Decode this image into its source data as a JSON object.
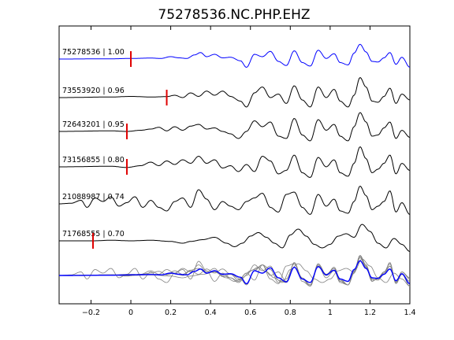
{
  "chart_data": {
    "type": "line",
    "title": "75278536.NC.PHP.EHZ",
    "xlabel": "",
    "ylabel": "",
    "xlim": [
      -0.36,
      1.4
    ],
    "x_ticks": [
      -0.2,
      0,
      0.2,
      0.4,
      0.6,
      0.8,
      1,
      1.2,
      1.4
    ],
    "x_tick_labels": [
      "−0.2",
      "0",
      "0.2",
      "0.4",
      "0.6",
      "0.8",
      "1",
      "1.2",
      "1.4"
    ],
    "grid": false,
    "pick_color": "#e00000",
    "stack_color": "#808080",
    "series": [
      {
        "name": "75278536 | 1.00",
        "color": "#0000ff",
        "pick": 0.0,
        "amp": 15,
        "keys": [
          [
            -0.36,
            0
          ],
          [
            -0.1,
            0.02
          ],
          [
            0.0,
            0.05
          ],
          [
            0.1,
            0.08
          ],
          [
            0.15,
            0.05
          ],
          [
            0.2,
            0.2
          ],
          [
            0.24,
            0.1
          ],
          [
            0.28,
            0.05
          ],
          [
            0.32,
            0.35
          ],
          [
            0.35,
            0.55
          ],
          [
            0.38,
            0.2
          ],
          [
            0.42,
            0.4
          ],
          [
            0.46,
            0.1
          ],
          [
            0.5,
            0.15
          ],
          [
            0.55,
            -0.15
          ],
          [
            0.58,
            -0.7
          ],
          [
            0.62,
            0.4
          ],
          [
            0.66,
            0.2
          ],
          [
            0.7,
            0.65
          ],
          [
            0.74,
            -0.2
          ],
          [
            0.78,
            -0.55
          ],
          [
            0.82,
            0.7
          ],
          [
            0.86,
            -0.3
          ],
          [
            0.9,
            -0.6
          ],
          [
            0.94,
            0.75
          ],
          [
            0.98,
            0.05
          ],
          [
            1.02,
            0.45
          ],
          [
            1.05,
            -0.3
          ],
          [
            1.09,
            -0.5
          ],
          [
            1.12,
            0.5
          ],
          [
            1.15,
            1.25
          ],
          [
            1.18,
            0.6
          ],
          [
            1.21,
            -0.2
          ],
          [
            1.24,
            -0.25
          ],
          [
            1.27,
            0.1
          ],
          [
            1.3,
            0.55
          ],
          [
            1.33,
            -0.45
          ],
          [
            1.36,
            0.15
          ],
          [
            1.4,
            -0.7
          ]
        ]
      },
      {
        "name": "73553920 | 0.96",
        "color": "#000000",
        "pick": 0.18,
        "amp": 15,
        "keys": [
          [
            -0.36,
            0
          ],
          [
            -0.1,
            0.05
          ],
          [
            0.0,
            0.1
          ],
          [
            0.1,
            0.05
          ],
          [
            0.18,
            0.08
          ],
          [
            0.22,
            0.2
          ],
          [
            0.26,
            0.0
          ],
          [
            0.3,
            0.4
          ],
          [
            0.34,
            0.1
          ],
          [
            0.38,
            0.55
          ],
          [
            0.42,
            0.2
          ],
          [
            0.46,
            0.55
          ],
          [
            0.5,
            0.1
          ],
          [
            0.55,
            -0.3
          ],
          [
            0.58,
            -0.8
          ],
          [
            0.62,
            0.4
          ],
          [
            0.66,
            0.9
          ],
          [
            0.7,
            0.0
          ],
          [
            0.74,
            0.3
          ],
          [
            0.78,
            -0.5
          ],
          [
            0.82,
            1.0
          ],
          [
            0.86,
            -0.2
          ],
          [
            0.9,
            -0.8
          ],
          [
            0.94,
            0.9
          ],
          [
            0.98,
            0.0
          ],
          [
            1.02,
            0.7
          ],
          [
            1.05,
            -0.3
          ],
          [
            1.09,
            -0.8
          ],
          [
            1.12,
            0.2
          ],
          [
            1.15,
            1.7
          ],
          [
            1.18,
            0.9
          ],
          [
            1.21,
            -0.3
          ],
          [
            1.24,
            -0.4
          ],
          [
            1.27,
            0.1
          ],
          [
            1.3,
            0.8
          ],
          [
            1.33,
            -0.5
          ],
          [
            1.36,
            0.3
          ],
          [
            1.4,
            -0.2
          ]
        ]
      },
      {
        "name": "72643201 | 0.95",
        "color": "#000000",
        "pick": -0.02,
        "amp": 15,
        "keys": [
          [
            -0.36,
            0
          ],
          [
            -0.1,
            0.05
          ],
          [
            -0.02,
            0.0
          ],
          [
            0.05,
            0.1
          ],
          [
            0.1,
            0.2
          ],
          [
            0.14,
            0.35
          ],
          [
            0.18,
            0.05
          ],
          [
            0.22,
            0.4
          ],
          [
            0.26,
            0.1
          ],
          [
            0.3,
            0.45
          ],
          [
            0.34,
            0.6
          ],
          [
            0.38,
            0.2
          ],
          [
            0.42,
            0.3
          ],
          [
            0.46,
            0.0
          ],
          [
            0.5,
            -0.2
          ],
          [
            0.54,
            -0.6
          ],
          [
            0.58,
            0.0
          ],
          [
            0.62,
            0.9
          ],
          [
            0.66,
            0.4
          ],
          [
            0.7,
            0.8
          ],
          [
            0.74,
            -0.4
          ],
          [
            0.78,
            -0.6
          ],
          [
            0.82,
            1.1
          ],
          [
            0.86,
            -0.3
          ],
          [
            0.9,
            -0.8
          ],
          [
            0.94,
            1.0
          ],
          [
            0.98,
            0.1
          ],
          [
            1.02,
            0.6
          ],
          [
            1.05,
            -0.4
          ],
          [
            1.09,
            -0.8
          ],
          [
            1.12,
            0.4
          ],
          [
            1.15,
            1.6
          ],
          [
            1.18,
            0.8
          ],
          [
            1.21,
            -0.4
          ],
          [
            1.24,
            -0.3
          ],
          [
            1.27,
            0.3
          ],
          [
            1.3,
            0.8
          ],
          [
            1.33,
            -0.6
          ],
          [
            1.36,
            0.1
          ],
          [
            1.4,
            -0.5
          ]
        ]
      },
      {
        "name": "73156855 | 0.80",
        "color": "#000000",
        "pick": -0.02,
        "amp": 15,
        "keys": [
          [
            -0.36,
            0
          ],
          [
            -0.1,
            0.05
          ],
          [
            -0.02,
            -0.05
          ],
          [
            0.05,
            0.1
          ],
          [
            0.1,
            0.4
          ],
          [
            0.14,
            0.1
          ],
          [
            0.18,
            0.5
          ],
          [
            0.22,
            0.2
          ],
          [
            0.26,
            0.6
          ],
          [
            0.3,
            0.3
          ],
          [
            0.34,
            0.9
          ],
          [
            0.38,
            0.3
          ],
          [
            0.42,
            0.6
          ],
          [
            0.46,
            -0.1
          ],
          [
            0.5,
            0.1
          ],
          [
            0.54,
            -0.4
          ],
          [
            0.58,
            0.2
          ],
          [
            0.62,
            -0.4
          ],
          [
            0.66,
            0.9
          ],
          [
            0.7,
            0.5
          ],
          [
            0.74,
            -0.6
          ],
          [
            0.78,
            -0.3
          ],
          [
            0.82,
            1.0
          ],
          [
            0.86,
            -0.5
          ],
          [
            0.9,
            -0.9
          ],
          [
            0.94,
            0.8
          ],
          [
            0.98,
            0.0
          ],
          [
            1.02,
            0.6
          ],
          [
            1.05,
            -0.5
          ],
          [
            1.09,
            -0.8
          ],
          [
            1.12,
            0.3
          ],
          [
            1.15,
            1.7
          ],
          [
            1.18,
            0.7
          ],
          [
            1.21,
            -0.5
          ],
          [
            1.24,
            -0.2
          ],
          [
            1.27,
            0.3
          ],
          [
            1.3,
            1.0
          ],
          [
            1.33,
            -0.6
          ],
          [
            1.36,
            0.3
          ],
          [
            1.4,
            -0.3
          ]
        ]
      },
      {
        "name": "21088987 | 0.74",
        "color": "#000000",
        "pick": null,
        "amp": 15,
        "keys": [
          [
            -0.36,
            0
          ],
          [
            -0.3,
            0.05
          ],
          [
            -0.25,
            0.3
          ],
          [
            -0.22,
            -0.3
          ],
          [
            -0.18,
            0.5
          ],
          [
            -0.14,
            0.2
          ],
          [
            -0.1,
            0.6
          ],
          [
            -0.06,
            -0.2
          ],
          [
            -0.02,
            0.1
          ],
          [
            0.02,
            0.6
          ],
          [
            0.06,
            -0.3
          ],
          [
            0.1,
            0.3
          ],
          [
            0.14,
            -0.3
          ],
          [
            0.18,
            -0.6
          ],
          [
            0.22,
            0.2
          ],
          [
            0.26,
            0.5
          ],
          [
            0.3,
            -0.3
          ],
          [
            0.34,
            1.2
          ],
          [
            0.38,
            0.4
          ],
          [
            0.42,
            -0.5
          ],
          [
            0.46,
            0.2
          ],
          [
            0.5,
            -0.2
          ],
          [
            0.54,
            -0.5
          ],
          [
            0.58,
            0.2
          ],
          [
            0.62,
            0.5
          ],
          [
            0.66,
            0.9
          ],
          [
            0.7,
            -0.3
          ],
          [
            0.74,
            -0.7
          ],
          [
            0.78,
            0.8
          ],
          [
            0.82,
            1.0
          ],
          [
            0.86,
            -0.3
          ],
          [
            0.9,
            -0.9
          ],
          [
            0.94,
            0.8
          ],
          [
            0.98,
            -0.2
          ],
          [
            1.02,
            0.4
          ],
          [
            1.05,
            -0.6
          ],
          [
            1.09,
            -0.8
          ],
          [
            1.12,
            0.2
          ],
          [
            1.15,
            1.5
          ],
          [
            1.18,
            0.7
          ],
          [
            1.21,
            -0.5
          ],
          [
            1.24,
            -0.2
          ],
          [
            1.27,
            0.2
          ],
          [
            1.3,
            1.1
          ],
          [
            1.33,
            -0.7
          ],
          [
            1.36,
            0.1
          ],
          [
            1.4,
            -0.9
          ]
        ]
      },
      {
        "name": "71768555 | 0.70",
        "color": "#000000",
        "pick": -0.19,
        "amp": 15,
        "keys": [
          [
            -0.36,
            0
          ],
          [
            -0.3,
            0.0
          ],
          [
            -0.19,
            0.0
          ],
          [
            -0.1,
            0.05
          ],
          [
            0.0,
            0.0
          ],
          [
            0.1,
            0.05
          ],
          [
            0.2,
            -0.05
          ],
          [
            0.26,
            -0.2
          ],
          [
            0.3,
            -0.05
          ],
          [
            0.36,
            0.1
          ],
          [
            0.42,
            0.3
          ],
          [
            0.48,
            -0.2
          ],
          [
            0.52,
            -0.5
          ],
          [
            0.56,
            -0.2
          ],
          [
            0.6,
            0.4
          ],
          [
            0.64,
            0.7
          ],
          [
            0.68,
            0.3
          ],
          [
            0.72,
            -0.2
          ],
          [
            0.76,
            -0.6
          ],
          [
            0.8,
            0.5
          ],
          [
            0.84,
            1.0
          ],
          [
            0.88,
            0.4
          ],
          [
            0.92,
            -0.3
          ],
          [
            0.96,
            -0.6
          ],
          [
            1.0,
            -0.3
          ],
          [
            1.04,
            0.4
          ],
          [
            1.08,
            0.6
          ],
          [
            1.12,
            0.3
          ],
          [
            1.16,
            1.4
          ],
          [
            1.2,
            0.8
          ],
          [
            1.24,
            -0.2
          ],
          [
            1.28,
            -0.6
          ],
          [
            1.32,
            0.2
          ],
          [
            1.36,
            -0.3
          ],
          [
            1.4,
            -0.9
          ]
        ]
      }
    ]
  }
}
